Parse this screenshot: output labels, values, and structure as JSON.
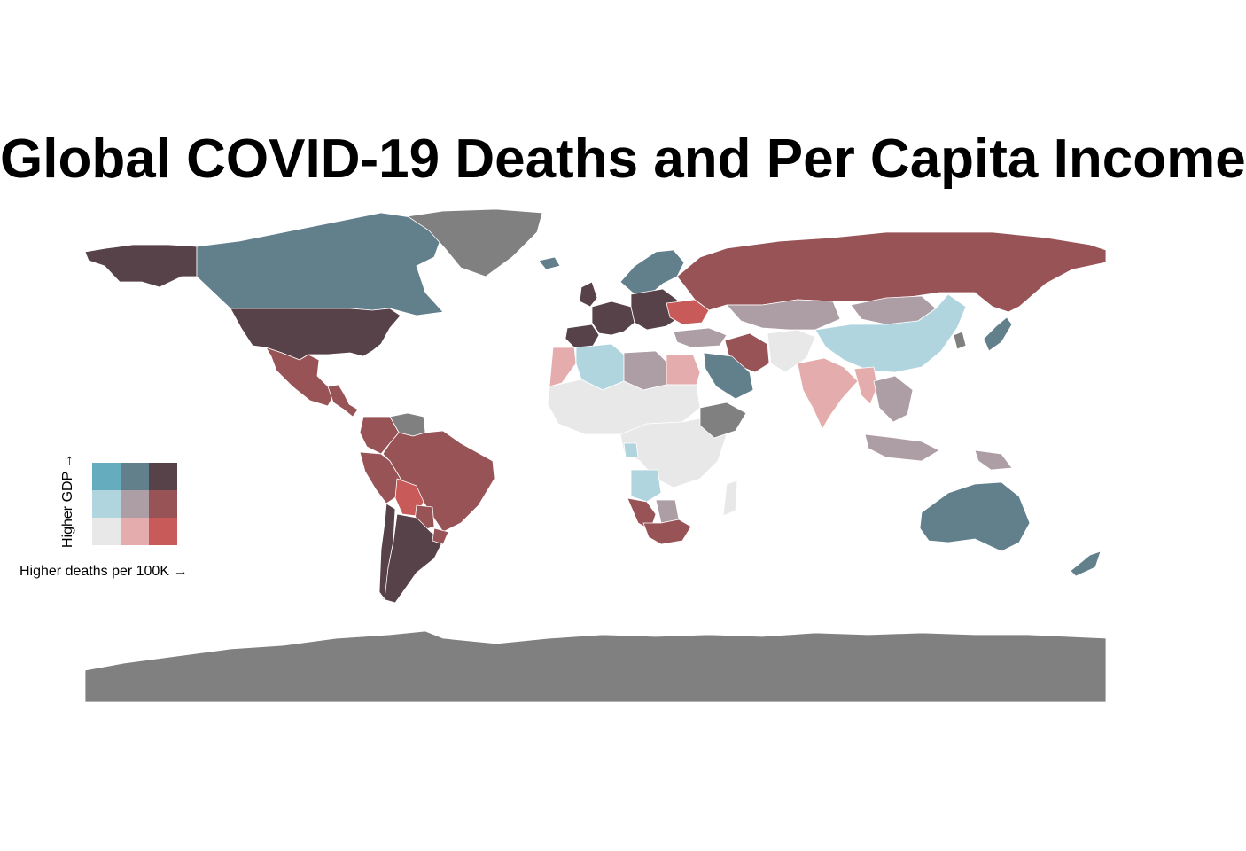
{
  "title": "Global COVID-19 Deaths and Per Capita Income",
  "legend": {
    "x_label": "Higher deaths per 100K →",
    "y_label": "Higher GDP →",
    "palette": {
      "1-1": "#e8e8e8",
      "2-1": "#e4acac",
      "3-1": "#c85a5a",
      "1-2": "#b0d5df",
      "2-2": "#ad9ea5",
      "3-2": "#985356",
      "1-3": "#64acbe",
      "2-3": "#627f8c",
      "3-3": "#574249",
      "no_data": "#808080"
    }
  },
  "regions": [
    {
      "name": "Alaska",
      "class": "3-3"
    },
    {
      "name": "Canada",
      "class": "2-3"
    },
    {
      "name": "Greenland",
      "class": "no_data"
    },
    {
      "name": "United States",
      "class": "3-3"
    },
    {
      "name": "Mexico",
      "class": "3-2"
    },
    {
      "name": "Central America",
      "class": "3-2"
    },
    {
      "name": "Venezuela",
      "class": "no_data"
    },
    {
      "name": "Colombia",
      "class": "3-2"
    },
    {
      "name": "Brazil",
      "class": "3-2"
    },
    {
      "name": "Peru",
      "class": "3-2"
    },
    {
      "name": "Bolivia",
      "class": "3-1"
    },
    {
      "name": "Paraguay",
      "class": "3-2"
    },
    {
      "name": "Argentina",
      "class": "3-3"
    },
    {
      "name": "Chile",
      "class": "3-3"
    },
    {
      "name": "Uruguay",
      "class": "3-2"
    },
    {
      "name": "Iceland",
      "class": "2-3"
    },
    {
      "name": "Scandinavia",
      "class": "2-3"
    },
    {
      "name": "United Kingdom",
      "class": "3-3"
    },
    {
      "name": "Iberia",
      "class": "3-3"
    },
    {
      "name": "Western Europe",
      "class": "3-3"
    },
    {
      "name": "Central Europe",
      "class": "3-3"
    },
    {
      "name": "Ukraine",
      "class": "3-1"
    },
    {
      "name": "Russia",
      "class": "3-2"
    },
    {
      "name": "Kazakhstan",
      "class": "2-2"
    },
    {
      "name": "Mongolia",
      "class": "2-2"
    },
    {
      "name": "Turkey",
      "class": "2-2"
    },
    {
      "name": "Iran",
      "class": "3-2"
    },
    {
      "name": "Central Asia",
      "class": "1-1"
    },
    {
      "name": "China",
      "class": "1-2"
    },
    {
      "name": "India",
      "class": "2-1"
    },
    {
      "name": "Myanmar",
      "class": "2-1"
    },
    {
      "name": "Southeast Asia",
      "class": "2-2"
    },
    {
      "name": "Indonesia",
      "class": "2-2"
    },
    {
      "name": "Japan",
      "class": "2-3"
    },
    {
      "name": "Korea",
      "class": "no_data"
    },
    {
      "name": "Saudi Arabia",
      "class": "2-3"
    },
    {
      "name": "Morocco",
      "class": "2-1"
    },
    {
      "name": "Algeria",
      "class": "1-2"
    },
    {
      "name": "Libya",
      "class": "2-2"
    },
    {
      "name": "Egypt",
      "class": "2-1"
    },
    {
      "name": "Sahel",
      "class": "1-1"
    },
    {
      "name": "Central Africa",
      "class": "1-1"
    },
    {
      "name": "Ethiopia",
      "class": "no_data"
    },
    {
      "name": "Gabon",
      "class": "1-2"
    },
    {
      "name": "Angola",
      "class": "1-2"
    },
    {
      "name": "Namibia",
      "class": "3-2"
    },
    {
      "name": "Botswana",
      "class": "2-2"
    },
    {
      "name": "South Africa",
      "class": "3-2"
    },
    {
      "name": "Madagascar",
      "class": "1-1"
    },
    {
      "name": "Australia",
      "class": "2-3"
    },
    {
      "name": "New Zealand",
      "class": "2-3"
    },
    {
      "name": "Papua New Guinea",
      "class": "2-2"
    },
    {
      "name": "Antarctica",
      "class": "no_data"
    }
  ]
}
